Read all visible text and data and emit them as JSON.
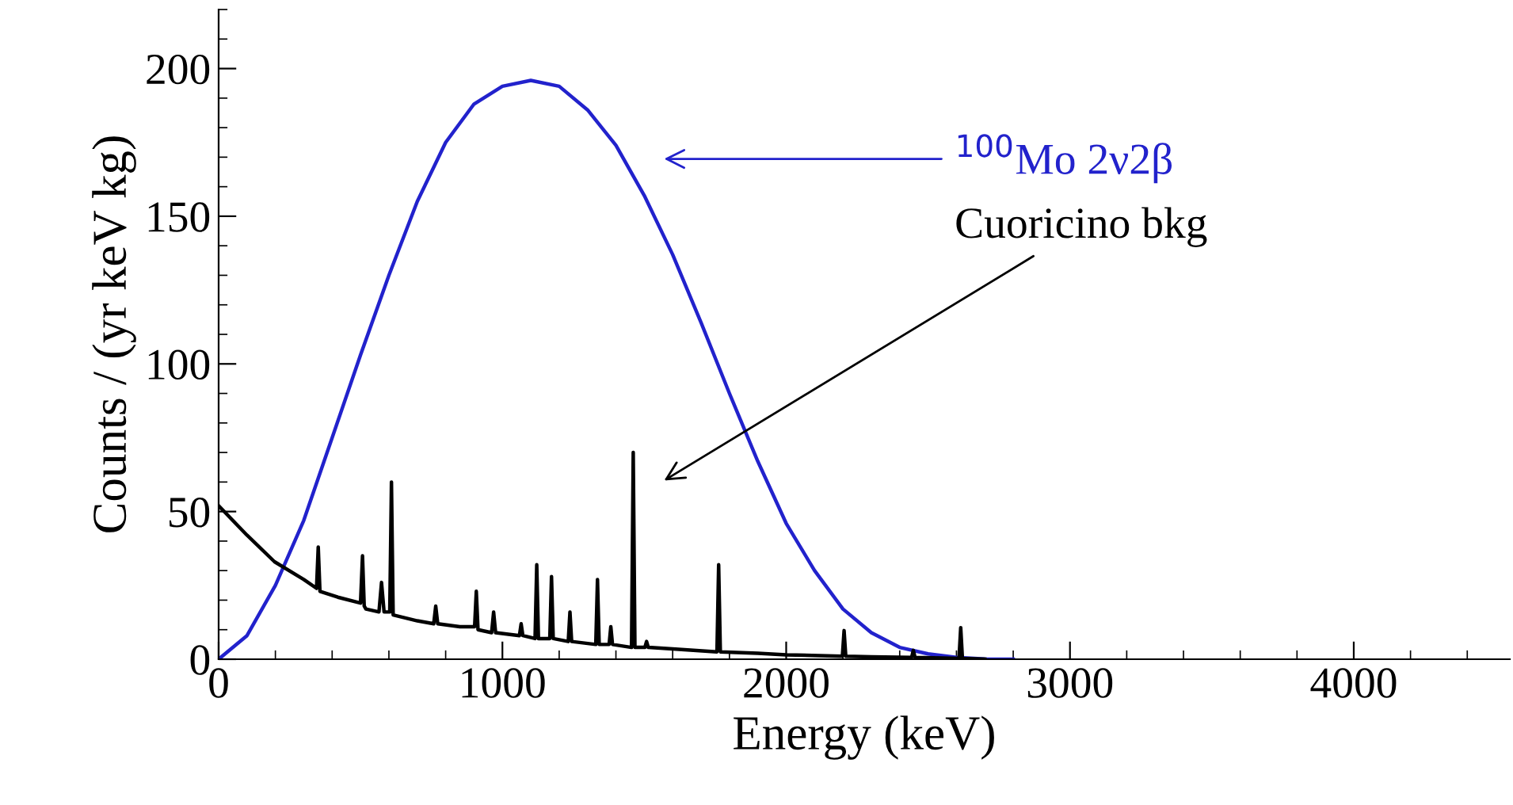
{
  "chart_data": {
    "type": "line",
    "xlabel": "Energy (keV)",
    "ylabel": "Counts / (yr keV kg)",
    "xlim": [
      0,
      4550
    ],
    "ylim": [
      0,
      220
    ],
    "xticks": [
      0,
      1000,
      2000,
      3000,
      4000
    ],
    "yticks": [
      0,
      50,
      100,
      150,
      200
    ],
    "grid": false,
    "marker": "none",
    "line_style": "solid",
    "series": [
      {
        "color": "#2222cc",
        "x": [
          0,
          100,
          200,
          300,
          400,
          500,
          600,
          700,
          800,
          900,
          1000,
          1100,
          1200,
          1300,
          1400,
          1500,
          1600,
          1700,
          1800,
          1900,
          2000,
          2100,
          2200,
          2300,
          2400,
          2500,
          2600,
          2700,
          2800
        ],
        "values": [
          0,
          8,
          25,
          47,
          75,
          103,
          130,
          155,
          175,
          188,
          194,
          196,
          194,
          186,
          174,
          157,
          137,
          114,
          90,
          67,
          46,
          30,
          17,
          9,
          4,
          1.8,
          0.6,
          0.1,
          0
        ]
      },
      {
        "color": "#000000",
        "x": [
          0,
          100,
          197,
          300,
          345,
          351,
          357,
          420,
          500,
          507,
          513,
          519,
          565,
          574,
          583,
          603,
          609,
          615,
          700,
          758,
          765,
          772,
          850,
          902,
          908,
          914,
          962,
          969,
          976,
          1060,
          1066,
          1072,
          1115,
          1121,
          1127,
          1167,
          1173,
          1179,
          1232,
          1238,
          1244,
          1329,
          1335,
          1341,
          1376,
          1382,
          1388,
          1455,
          1461,
          1467,
          1502,
          1508,
          1514,
          1600,
          1756,
          1762,
          1768,
          1900,
          2000,
          2198,
          2204,
          2210,
          2300,
          2442,
          2448,
          2454,
          2550,
          2609,
          2615,
          2621,
          2700
        ],
        "values": [
          52,
          42,
          33,
          27,
          24,
          38,
          23,
          21,
          19,
          35,
          18,
          17,
          16,
          26,
          16,
          16,
          60,
          15,
          13,
          12,
          18,
          12,
          11,
          11,
          23,
          10,
          9,
          16,
          9,
          8,
          12,
          8,
          7,
          32,
          7,
          7,
          28,
          7,
          6,
          16,
          6,
          5,
          27,
          5,
          5,
          11,
          5,
          4,
          70,
          4,
          4,
          6,
          4,
          3.5,
          2.5,
          32,
          2.5,
          2,
          1.5,
          1,
          9.7,
          1,
          0.8,
          0.6,
          3,
          0.6,
          0.4,
          0.3,
          10.7,
          0.3,
          0
        ]
      }
    ],
    "annotations": [
      "$^{100}$Mo 2ν2β",
      "Cuoricino bkg"
    ]
  }
}
